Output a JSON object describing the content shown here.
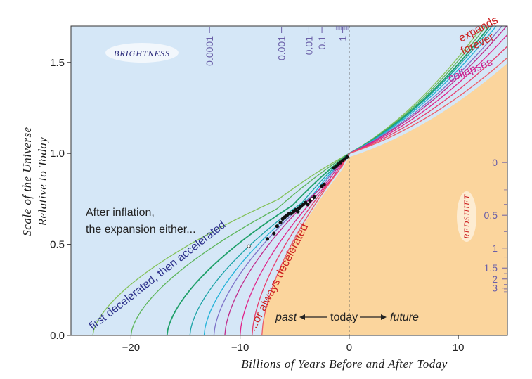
{
  "chart_data": {
    "type": "line",
    "xlabel": "Billions of Years Before and After Today",
    "ylabel_line1": "Scale of the Universe",
    "ylabel_line2": "Relative to Today",
    "xlim": [
      -25.5,
      14.5
    ],
    "ylim": [
      0.0,
      1.7
    ],
    "x_ticks": [
      -20,
      -10,
      0,
      10
    ],
    "x_tick_labels": [
      "−20",
      "−10",
      "0",
      "10"
    ],
    "y_ticks": [
      0.0,
      0.5,
      1.0,
      1.5
    ],
    "y_tick_labels": [
      "0.0",
      "0.5",
      "1.0",
      "1.5"
    ],
    "regions": {
      "accelerating_fill": "#d5e7f7",
      "decelerating_fill": "#fbd59d"
    },
    "curve_colors": [
      "#84c25a",
      "#5cb55a",
      "#1fa06a",
      "#1aa3a6",
      "#22b2d8",
      "#7e72c8",
      "#c02c8c",
      "#e0248a",
      "#e83c6c",
      "#ee5c66"
    ],
    "curve_t0": [
      -23.5,
      -20.0,
      -16.7,
      -14.6,
      -13.3,
      -12.4,
      -11.4,
      -10.0,
      -8.9,
      -8.0
    ],
    "curve_a_at_plus14": [
      1.85,
      1.82,
      1.79,
      1.77,
      1.74,
      1.7,
      1.67,
      1.62,
      1.56,
      1.5
    ],
    "curve_inflection_x": [
      -6.5,
      -6.6,
      -5.2,
      -4.3,
      -3.4,
      -2.7,
      -1.9,
      -1.5,
      -1.0,
      -0.6
    ],
    "supernovae": {
      "x": [
        -9.2,
        -7.5,
        -6.9,
        -6.6,
        -6.3,
        -6.1,
        -5.9,
        -5.7,
        -5.5,
        -5.3,
        -5.1,
        -4.9,
        -4.7,
        -4.6,
        -4.4,
        -4.2,
        -4.0,
        -3.8,
        -3.6,
        -3.4,
        -3.2,
        -2.5,
        -2.3,
        -1.4,
        -1.2,
        -1.0,
        -0.8,
        -0.6,
        -0.4,
        -0.2
      ],
      "y": [
        0.49,
        0.53,
        0.56,
        0.6,
        0.62,
        0.64,
        0.65,
        0.66,
        0.67,
        0.67,
        0.68,
        0.69,
        0.68,
        0.7,
        0.71,
        0.72,
        0.73,
        0.72,
        0.74,
        0.75,
        0.76,
        0.82,
        0.83,
        0.92,
        0.93,
        0.94,
        0.95,
        0.96,
        0.97,
        0.98
      ],
      "open": [
        true,
        false,
        false,
        false,
        false,
        false,
        false,
        false,
        false,
        false,
        false,
        false,
        false,
        false,
        false,
        false,
        false,
        false,
        false,
        true,
        false,
        false,
        false,
        false,
        false,
        false,
        false,
        false,
        false,
        false
      ]
    },
    "brightness": {
      "label": "BRIGHTNESS",
      "x": [
        -12.8,
        -6.2,
        -3.7,
        -2.5,
        -0.6
      ],
      "labels": [
        "0.0001",
        "0.001",
        "0.01",
        "0.1",
        "1"
      ]
    },
    "redshift": {
      "label": "REDSHIFT",
      "y": [
        0.95,
        0.66,
        0.48,
        0.37,
        0.31,
        0.26
      ],
      "labels": [
        "0",
        "0.5",
        "1",
        "1.5",
        "2",
        "3"
      ]
    },
    "annotations": {
      "inflection_line1": "After inflation,",
      "inflection_line2": "the expansion either...",
      "first_decel": "first decelerated, then accelerated",
      "always_decel": "...or always decelerated",
      "expands": "expands",
      "forever": "forever",
      "collapses": "collapses",
      "past": "past",
      "today": "today",
      "future": "future"
    }
  }
}
